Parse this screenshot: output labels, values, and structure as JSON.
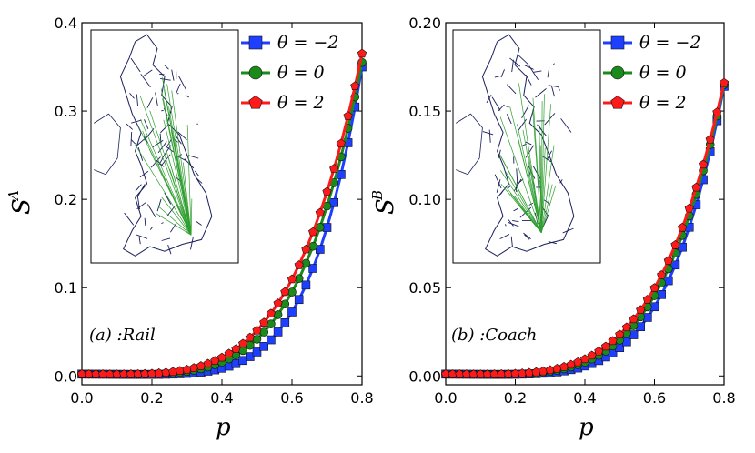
{
  "chart_data": [
    {
      "type": "line",
      "panel_label": "(a) :Rail",
      "xlabel": "p",
      "ylabel_base": "S",
      "ylabel_sup": "A",
      "xlim": [
        0.0,
        0.8
      ],
      "ylim": [
        -0.01,
        0.4
      ],
      "xticks": [
        "0.0",
        "0.2",
        "0.4",
        "0.6",
        "0.8"
      ],
      "yticks": [
        "0.0",
        "0.1",
        "0.2",
        "0.3",
        "0.4"
      ],
      "ytick_values": [
        0.0,
        0.1,
        0.2,
        0.3,
        0.4
      ],
      "inset": "Rail network map of Great Britain (blue links with green shortcuts)",
      "series": [
        {
          "name": "θ=−2",
          "color": "#1f3fff",
          "marker": "square",
          "exponent": 5.5,
          "scale": 0.35
        },
        {
          "name": "θ=0",
          "color": "#1a8a1a",
          "marker": "circle",
          "exponent": 4.6,
          "scale": 0.355
        },
        {
          "name": "θ=2",
          "color": "#ff1a1a",
          "marker": "pentagon",
          "exponent": 4.2,
          "scale": 0.365
        }
      ]
    },
    {
      "type": "line",
      "panel_label": "(b) :Coach",
      "xlabel": "p",
      "ylabel_base": "S",
      "ylabel_sup": "B",
      "xlim": [
        0.0,
        0.8
      ],
      "ylim": [
        -0.005,
        0.2
      ],
      "xticks": [
        "0.0",
        "0.2",
        "0.4",
        "0.6",
        "0.8"
      ],
      "yticks": [
        "0.00",
        "0.05",
        "0.10",
        "0.15",
        "0.20"
      ],
      "ytick_values": [
        0.0,
        0.05,
        0.1,
        0.15,
        0.2
      ],
      "inset": "Coach network map of Great Britain (blue links with green shortcuts)",
      "series": [
        {
          "name": "θ=−2",
          "color": "#1f3fff",
          "marker": "square",
          "exponent": 5.0,
          "scale": 0.164
        },
        {
          "name": "θ=0",
          "color": "#1a8a1a",
          "marker": "circle",
          "exponent": 4.5,
          "scale": 0.165
        },
        {
          "name": "θ=2",
          "color": "#ff1a1a",
          "marker": "pentagon",
          "exponent": 4.2,
          "scale": 0.166
        }
      ]
    }
  ],
  "legend_labels": [
    "θ = −2",
    "θ = 0",
    "θ = 2"
  ],
  "colors": {
    "blue": "#1f3fff",
    "green": "#1a8a1a",
    "red": "#ff1a1a",
    "map_blue": "#1a1f5c",
    "map_green": "#2e9e2e"
  }
}
